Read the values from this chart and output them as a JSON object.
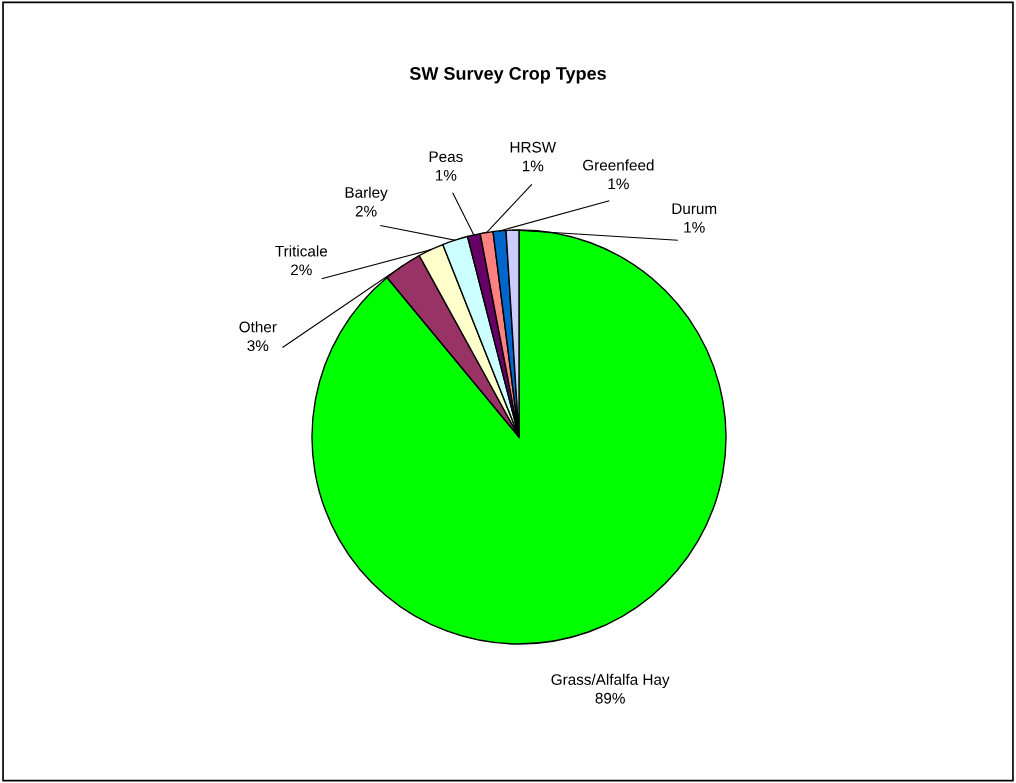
{
  "chart_data": {
    "type": "pie",
    "title": "SW Survey Crop Types",
    "categories": [
      "Grass/Alfalfa Hay",
      "Other",
      "Triticale",
      "Barley",
      "Peas",
      "HRSW",
      "Greenfeed",
      "Durum"
    ],
    "values": [
      89,
      3,
      2,
      2,
      1,
      1,
      1,
      1
    ],
    "value_labels": [
      "89%",
      "3%",
      "2%",
      "2%",
      "1%",
      "1%",
      "1%",
      "1%"
    ],
    "colors": [
      "#00ff00",
      "#993366",
      "#ffffcc",
      "#ccffff",
      "#660066",
      "#ff8080",
      "#0066cc",
      "#ccccff"
    ],
    "legend": false
  }
}
